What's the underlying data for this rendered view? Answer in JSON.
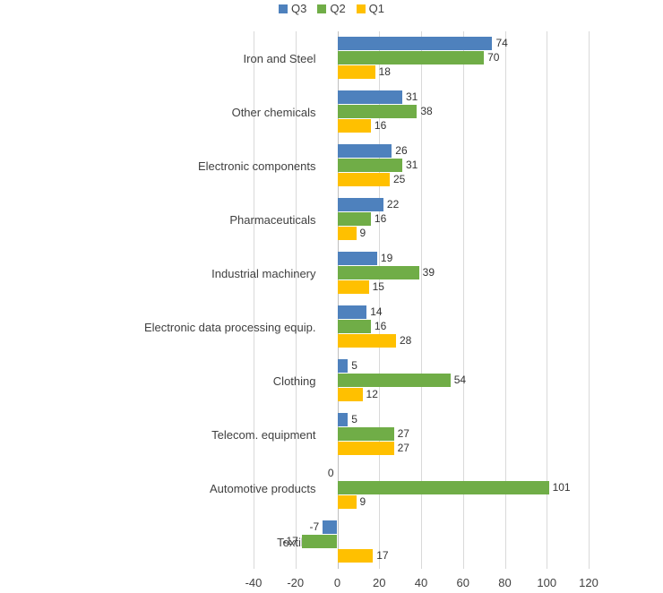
{
  "chart_data": {
    "type": "bar",
    "orientation": "horizontal",
    "title": "",
    "xlabel": "",
    "ylabel": "",
    "grid": true,
    "legend_position": "top",
    "data_labels": true,
    "xlim": [
      -40,
      120
    ],
    "xticks": [
      -40,
      -20,
      0,
      20,
      40,
      60,
      80,
      100,
      120
    ],
    "categories": [
      "Iron and Steel",
      "Other chemicals",
      "Electronic components",
      "Pharmaceuticals",
      "Industrial machinery",
      "Electronic data processing equip.",
      "Clothing",
      "Telecom. equipment",
      "Automotive products",
      "Textiles"
    ],
    "series": [
      {
        "name": "Q3",
        "color": "#4E81BD",
        "values": [
          74,
          31,
          26,
          22,
          19,
          14,
          5,
          5,
          0,
          -7
        ]
      },
      {
        "name": "Q2",
        "color": "#70AD47",
        "values": [
          70,
          38,
          31,
          16,
          39,
          16,
          54,
          27,
          101,
          -17
        ]
      },
      {
        "name": "Q1",
        "color": "#FFC000",
        "values": [
          18,
          16,
          25,
          9,
          15,
          28,
          12,
          27,
          9,
          17
        ]
      }
    ]
  },
  "colors": {
    "gridline": "#D9D9D9",
    "axis": "#BFBFBF",
    "text": "#404040"
  }
}
